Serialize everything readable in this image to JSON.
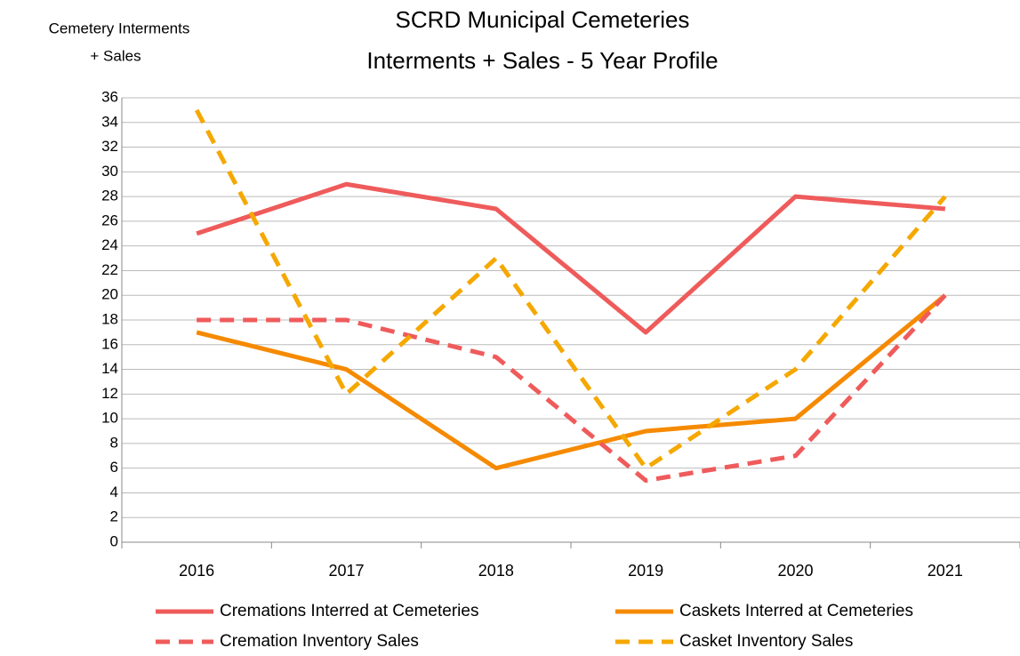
{
  "chart_data": {
    "type": "line",
    "title": "SCRD Municipal Cemeteries",
    "subtitle": "Interments + Sales - 5 Year Profile",
    "y_label": [
      "Cemetery  Interments",
      "+ Sales"
    ],
    "categories": [
      "2016",
      "2017",
      "2018",
      "2019",
      "2020",
      "2021"
    ],
    "series": [
      {
        "name": "Cremations Interred at Cemeteries",
        "color": "#ef5b5b",
        "dashed": false,
        "values": [
          25,
          29,
          27,
          17,
          28,
          27
        ]
      },
      {
        "name": "Caskets Interred at Cemeteries",
        "color": "#f58a00",
        "dashed": false,
        "values": [
          17,
          14,
          6,
          9,
          10,
          20
        ]
      },
      {
        "name": "Cremation Inventory Sales",
        "color": "#ef5b5b",
        "dashed": true,
        "values": [
          18,
          18,
          15,
          5,
          7,
          20
        ]
      },
      {
        "name": "Casket Inventory Sales",
        "color": "#f5a800",
        "dashed": true,
        "values": [
          35,
          12,
          23,
          6,
          14,
          28
        ]
      }
    ],
    "ylim": [
      0,
      36
    ],
    "yticks": [
      0,
      2,
      4,
      6,
      8,
      10,
      12,
      14,
      16,
      18,
      20,
      22,
      24,
      26,
      28,
      30,
      32,
      34,
      36
    ],
    "grid": true
  }
}
